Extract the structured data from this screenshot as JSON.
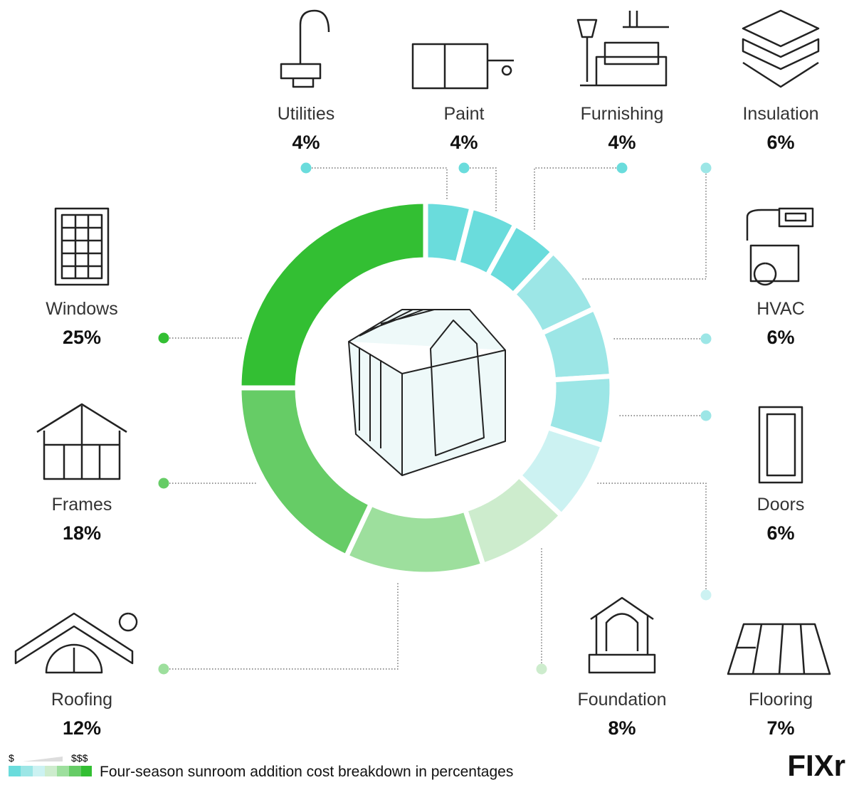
{
  "chart_data": {
    "type": "donut",
    "categories": [
      "Utilities",
      "Paint",
      "Furnishing",
      "Insulation",
      "HVAC",
      "Doors",
      "Flooring",
      "Foundation",
      "Roofing",
      "Frames",
      "Windows"
    ],
    "values": [
      4,
      4,
      4,
      6,
      6,
      6,
      7,
      8,
      12,
      18,
      25
    ],
    "value_labels": [
      "4%",
      "4%",
      "4%",
      "6%",
      "6%",
      "6%",
      "7%",
      "8%",
      "12%",
      "18%",
      "25%"
    ],
    "colors": [
      "#6adcdc",
      "#6adcdc",
      "#6adcdc",
      "#9ce6e6",
      "#9ce6e6",
      "#9ce6e6",
      "#ccf2f2",
      "#cdeccd",
      "#9ddf9d",
      "#66cc66",
      "#33bf33"
    ],
    "caption": "Four-season sunroom addition cost breakdown in percentages",
    "scale_low": "$",
    "scale_high": "$$$",
    "logo": "FIXr"
  }
}
